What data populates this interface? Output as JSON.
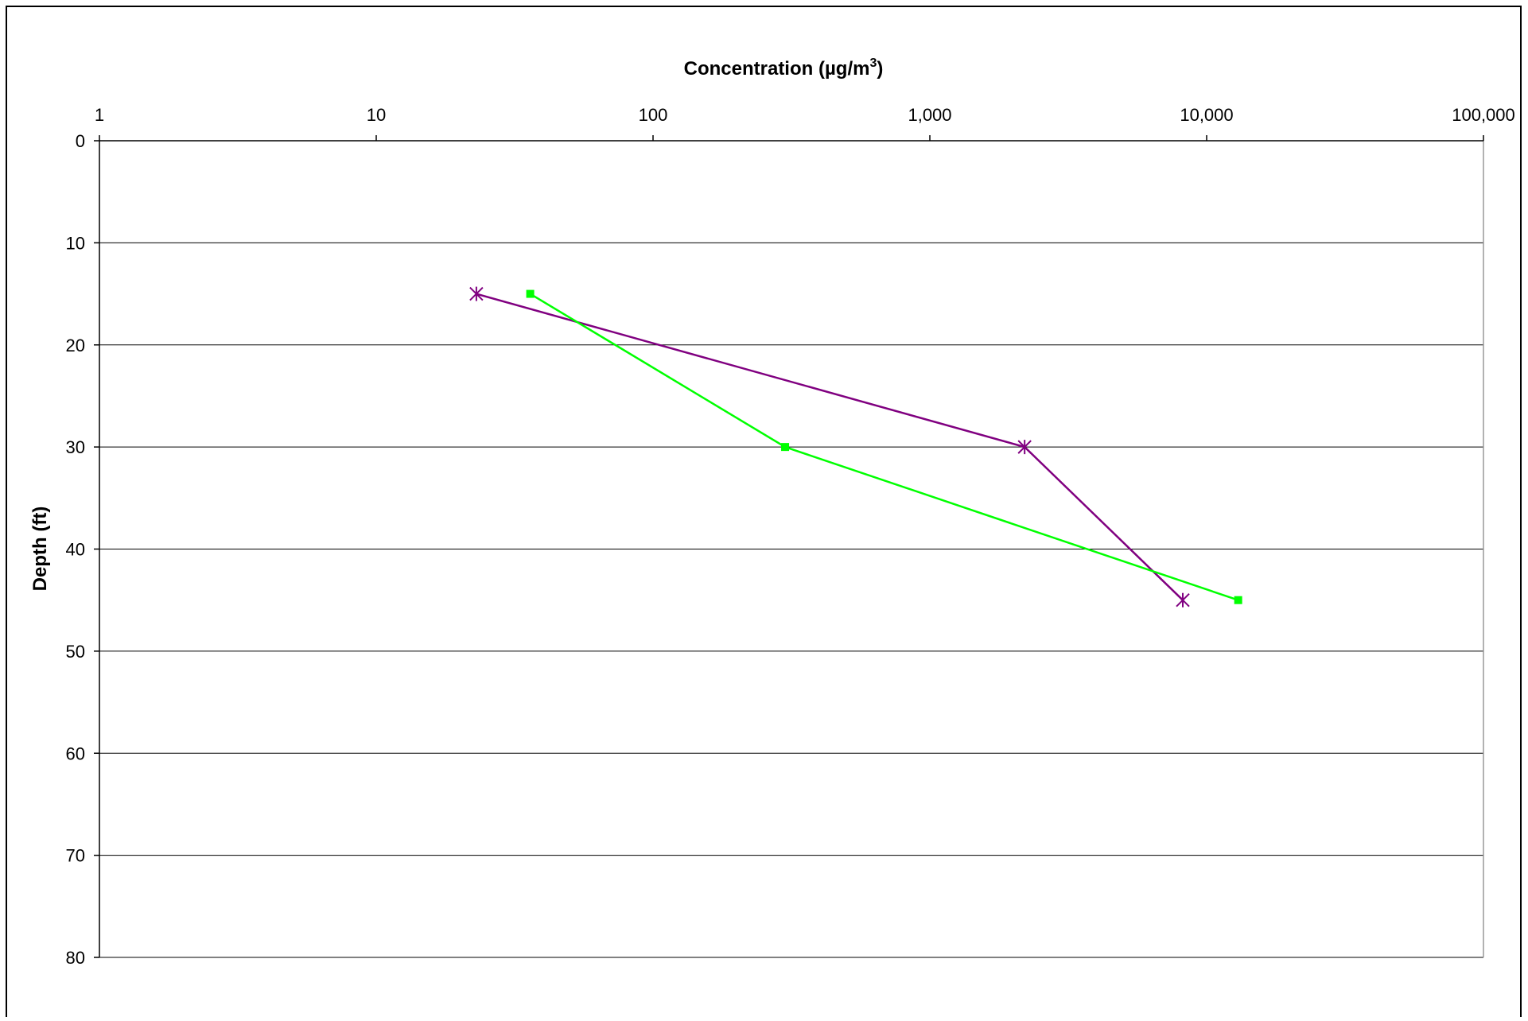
{
  "chart_data": {
    "type": "line",
    "xlabel": "Concentration (µg/m",
    "xlabel_superscript": "3",
    "xlabel_suffix": ")",
    "ylabel": "Depth (ft)",
    "x_scale": "log",
    "x_axis_position": "top",
    "y_axis_reversed": true,
    "xlim": [
      1,
      100000
    ],
    "ylim": [
      0,
      80
    ],
    "x_ticks": [
      1,
      10,
      100,
      1000,
      10000,
      100000
    ],
    "x_tick_labels": [
      "1",
      "10",
      "100",
      "1,000",
      "10,000",
      "100,000"
    ],
    "y_ticks": [
      0,
      10,
      20,
      30,
      40,
      50,
      60,
      70,
      80
    ],
    "y_tick_labels": [
      "0",
      "10",
      "20",
      "30",
      "40",
      "50",
      "60",
      "70",
      "80"
    ],
    "grid": "horizontal",
    "series": [
      {
        "marker": "asterisk",
        "color": "#800080",
        "points": [
          {
            "x": 23,
            "y": 15
          },
          {
            "x": 2200,
            "y": 30
          },
          {
            "x": 8200,
            "y": 45
          }
        ]
      },
      {
        "marker": "square",
        "color": "#00ff00",
        "points": [
          {
            "x": 36,
            "y": 15
          },
          {
            "x": 300,
            "y": 30
          },
          {
            "x": 13000,
            "y": 45
          }
        ]
      }
    ]
  }
}
